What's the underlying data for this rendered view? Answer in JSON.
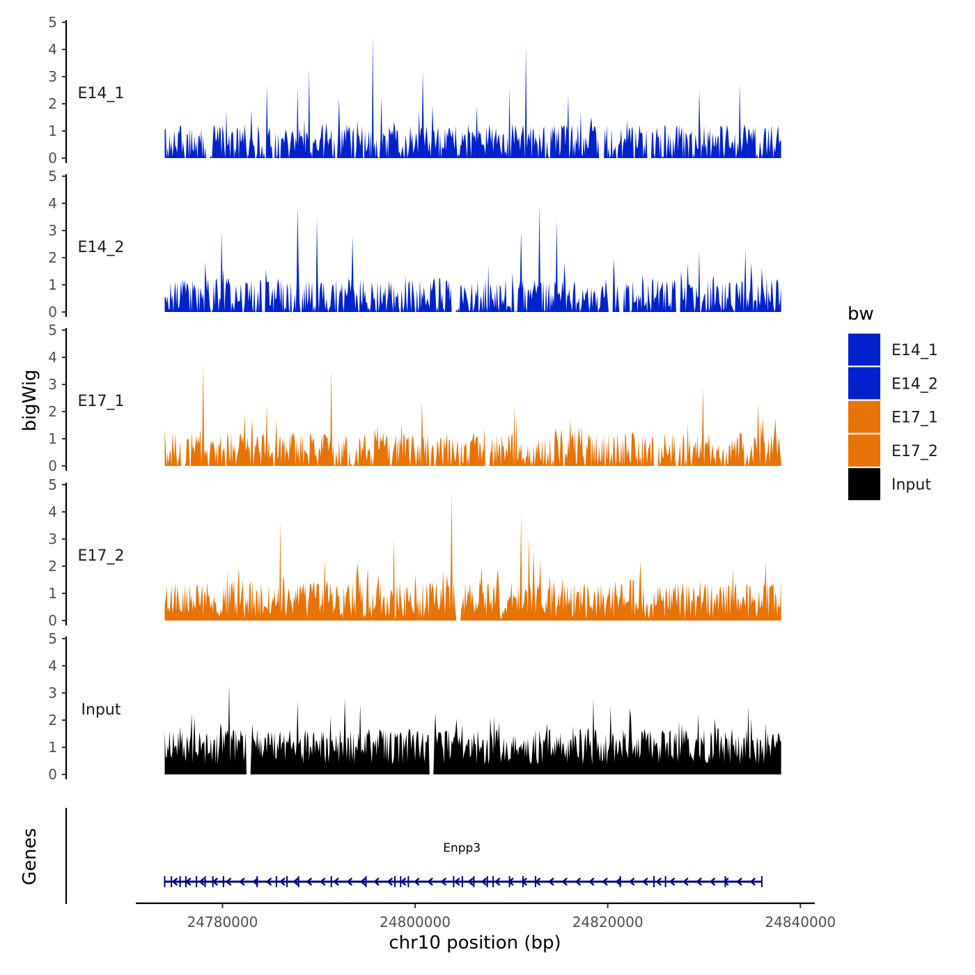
{
  "chart_data": {
    "type": "area",
    "chromosome": "chr10",
    "xlabel": "chr10 position (bp)",
    "ylabel": "bigWig",
    "genes_label": "Genes",
    "xlim": [
      24771000,
      24841500
    ],
    "data_range": [
      24774000,
      24838000
    ],
    "ylim": [
      0,
      5
    ],
    "y_ticks": [
      "0",
      "1",
      "2",
      "3",
      "4",
      "5"
    ],
    "x_ticks": [
      {
        "value": 24780000,
        "label": "24780000"
      },
      {
        "value": 24800000,
        "label": "24800000"
      },
      {
        "value": 24820000,
        "label": "24820000"
      },
      {
        "value": 24840000,
        "label": "24840000"
      }
    ],
    "legend": {
      "title": "bw",
      "entries": [
        {
          "name": "E14_1",
          "color": "#0022cc"
        },
        {
          "name": "E14_2",
          "color": "#0022cc"
        },
        {
          "name": "E17_1",
          "color": "#e87306"
        },
        {
          "name": "E17_2",
          "color": "#e87306"
        },
        {
          "name": "Input",
          "color": "#000000"
        }
      ]
    },
    "series": [
      {
        "name": "E14_1",
        "color": "#0022cc",
        "peaks": [
          {
            "pos": 24778500,
            "value": 0.0
          },
          {
            "pos": 24784600,
            "value": 2.7
          },
          {
            "pos": 24787800,
            "value": 2.6
          },
          {
            "pos": 24789000,
            "value": 3.3
          },
          {
            "pos": 24792100,
            "value": 2.2
          },
          {
            "pos": 24795600,
            "value": 4.5
          },
          {
            "pos": 24796500,
            "value": 2.3
          },
          {
            "pos": 24800800,
            "value": 3.2
          },
          {
            "pos": 24809800,
            "value": 2.6
          },
          {
            "pos": 24811500,
            "value": 4.2
          },
          {
            "pos": 24815900,
            "value": 2.3
          },
          {
            "pos": 24819400,
            "value": 0.0
          },
          {
            "pos": 24824300,
            "value": 0.0
          },
          {
            "pos": 24829500,
            "value": 2.5
          },
          {
            "pos": 24833700,
            "value": 2.7
          }
        ]
      },
      {
        "name": "E14_2",
        "color": "#0022cc",
        "peaks": [
          {
            "pos": 24779900,
            "value": 3.0
          },
          {
            "pos": 24787800,
            "value": 3.9
          },
          {
            "pos": 24789800,
            "value": 3.5
          },
          {
            "pos": 24793500,
            "value": 2.8
          },
          {
            "pos": 24804000,
            "value": 0.0
          },
          {
            "pos": 24811000,
            "value": 3.0
          },
          {
            "pos": 24812900,
            "value": 3.9
          },
          {
            "pos": 24814700,
            "value": 3.4
          },
          {
            "pos": 24820300,
            "value": 0.0
          },
          {
            "pos": 24821400,
            "value": 0.0
          },
          {
            "pos": 24827300,
            "value": 0.0
          },
          {
            "pos": 24829500,
            "value": 2.3
          },
          {
            "pos": 24834300,
            "value": 2.3
          }
        ]
      },
      {
        "name": "E17_1",
        "color": "#e87306",
        "peaks": [
          {
            "pos": 24775900,
            "value": 0.0
          },
          {
            "pos": 24777950,
            "value": 3.8
          },
          {
            "pos": 24784600,
            "value": 2.3
          },
          {
            "pos": 24791300,
            "value": 3.6
          },
          {
            "pos": 24800700,
            "value": 2.4
          },
          {
            "pos": 24807500,
            "value": 0.0
          },
          {
            "pos": 24810300,
            "value": 2.3
          },
          {
            "pos": 24825000,
            "value": 0.0
          },
          {
            "pos": 24829900,
            "value": 2.9
          },
          {
            "pos": 24835600,
            "value": 2.3
          }
        ]
      },
      {
        "name": "E17_2",
        "color": "#e87306",
        "peaks": [
          {
            "pos": 24786000,
            "value": 3.7
          },
          {
            "pos": 24790600,
            "value": 2.3
          },
          {
            "pos": 24797800,
            "value": 3.1
          },
          {
            "pos": 24803800,
            "value": 4.7
          },
          {
            "pos": 24804500,
            "value": 0.0
          },
          {
            "pos": 24811000,
            "value": 3.9
          },
          {
            "pos": 24811800,
            "value": 3.1
          },
          {
            "pos": 24812300,
            "value": 2.6
          }
        ]
      },
      {
        "name": "Input",
        "color": "#000000",
        "peaks": [
          {
            "pos": 24780700,
            "value": 3.3
          },
          {
            "pos": 24782700,
            "value": 0.0
          },
          {
            "pos": 24787800,
            "value": 2.7
          },
          {
            "pos": 24792700,
            "value": 2.8
          },
          {
            "pos": 24794300,
            "value": 2.6
          },
          {
            "pos": 24801700,
            "value": 0.0
          },
          {
            "pos": 24818500,
            "value": 2.8
          },
          {
            "pos": 24820300,
            "value": 2.5
          },
          {
            "pos": 24834600,
            "value": 2.5
          }
        ]
      }
    ],
    "genes": [
      {
        "name": "Enpp3",
        "start": 24774000,
        "end": 24836000,
        "strand": "-",
        "color": "#000080",
        "exons": [
          24774000,
          24774700,
          24775600,
          24776200,
          24777300,
          24778200,
          24779000,
          24780100,
          24783600,
          24785600,
          24786700,
          24787900,
          24791300,
          24794900,
          24797900,
          24798500,
          24799300,
          24804000,
          24804900,
          24806100,
          24807500,
          24808100,
          24809800,
          24811200,
          24812500,
          24821300,
          24824800,
          24826000,
          24832200,
          24836000
        ]
      }
    ]
  }
}
